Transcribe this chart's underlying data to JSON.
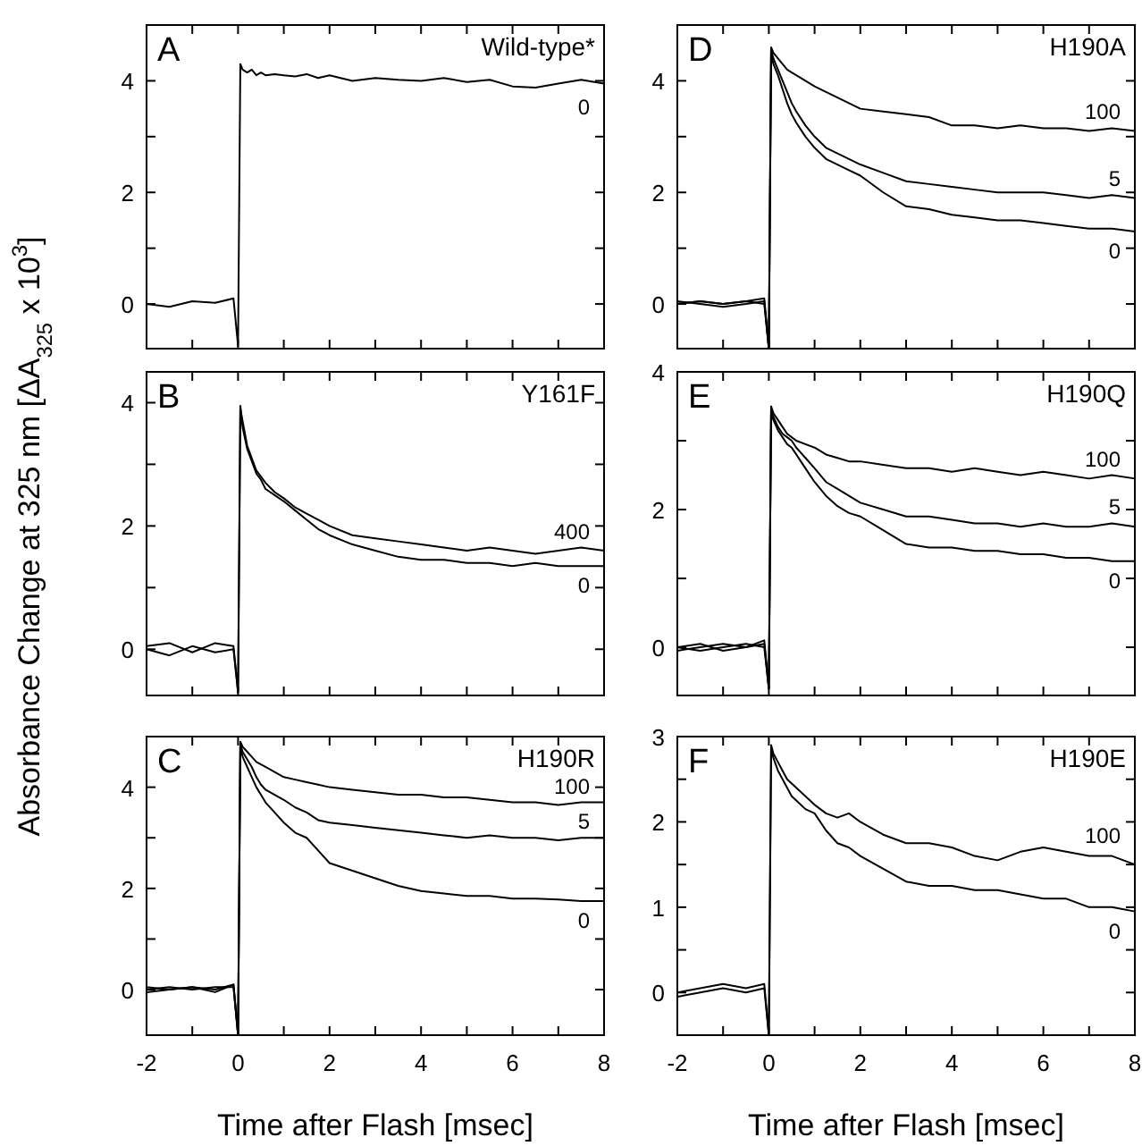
{
  "chart_data": [
    {
      "type": "line",
      "title": "A",
      "subtitle": "Wild-type*",
      "legend": "right",
      "xlim": [
        -2,
        8
      ],
      "xticks": [
        -2,
        {
          "value": -1,
          "label": null
        },
        0,
        {
          "value": 1,
          "label": null
        },
        2,
        {
          "value": 3,
          "label": null
        },
        4,
        {
          "value": 5,
          "label": null
        },
        6,
        {
          "value": 7,
          "label": null
        },
        8
      ],
      "ylim": [
        -0.8,
        5
      ],
      "yticks": [
        0,
        {
          "value": 1,
          "label": null
        },
        2,
        {
          "value": 3,
          "label": null
        },
        4
      ],
      "tick_labels": "y",
      "marker": "none",
      "line_style": "solid",
      "grid": false,
      "x": [
        -2,
        -1.5,
        -1,
        -0.5,
        -0.1,
        0,
        0.05,
        0.1,
        0.2,
        0.3,
        0.4,
        0.5,
        0.6,
        0.8,
        1,
        1.25,
        1.5,
        1.75,
        2,
        2.5,
        3,
        3.5,
        4,
        4.5,
        5,
        5.5,
        6,
        6.5,
        7,
        7.5,
        8
      ],
      "series": [
        {
          "name": "0",
          "color": "#000000",
          "values": [
            0,
            -0.05,
            0.05,
            0.02,
            0.1,
            -0.75,
            4.3,
            4.2,
            4.15,
            4.2,
            4.1,
            4.15,
            4.1,
            4.12,
            4.1,
            4.08,
            4.12,
            4.05,
            4.1,
            4.0,
            4.05,
            4.02,
            4.0,
            4.05,
            3.98,
            4.02,
            3.9,
            3.88,
            3.95,
            4.02,
            3.95
          ]
        }
      ]
    },
    {
      "type": "line",
      "title": "B",
      "subtitle": "Y161F",
      "ylabel": "Absorbance Change at 325 nm [ΔA$_{325}$ x 10$^{3}$]",
      "xlim": [
        -2,
        8
      ],
      "xticks": [
        -2,
        {
          "value": -1,
          "label": null
        },
        0,
        {
          "value": 1,
          "label": null
        },
        2,
        {
          "value": 3,
          "label": null
        },
        4,
        {
          "value": 5,
          "label": null
        },
        6,
        {
          "value": 7,
          "label": null
        },
        8
      ],
      "ylim": [
        -0.75,
        4.5
      ],
      "yticks": [
        0,
        {
          "value": 1,
          "label": null
        },
        2,
        {
          "value": 3,
          "label": null
        },
        4
      ],
      "tick_labels": "y",
      "legend": "right",
      "marker": "none",
      "line_style": "solid",
      "grid": false,
      "x": [
        -2,
        -1.5,
        -1,
        -0.5,
        -0.1,
        0,
        0.05,
        0.1,
        0.2,
        0.3,
        0.4,
        0.5,
        0.6,
        0.8,
        1,
        1.25,
        1.5,
        1.75,
        2,
        2.5,
        3,
        3.5,
        4,
        4.5,
        5,
        5.5,
        6,
        6.5,
        7,
        7.5,
        8
      ],
      "series": [
        {
          "name": "400",
          "color": "#000000",
          "values": [
            0.05,
            0.1,
            -0.05,
            0.1,
            0.05,
            -0.7,
            3.9,
            3.7,
            3.3,
            3.1,
            2.9,
            2.8,
            2.7,
            2.55,
            2.45,
            2.3,
            2.2,
            2.1,
            2.0,
            1.85,
            1.8,
            1.75,
            1.7,
            1.65,
            1.6,
            1.65,
            1.6,
            1.55,
            1.6,
            1.65,
            1.6
          ]
        },
        {
          "name": "0",
          "color": "#000000",
          "values": [
            0,
            -0.1,
            0.05,
            -0.05,
            0.0,
            -0.7,
            3.95,
            3.6,
            3.25,
            3.05,
            2.85,
            2.75,
            2.6,
            2.5,
            2.4,
            2.25,
            2.1,
            1.95,
            1.85,
            1.7,
            1.6,
            1.5,
            1.45,
            1.45,
            1.4,
            1.4,
            1.35,
            1.4,
            1.35,
            1.35,
            1.35
          ]
        }
      ]
    },
    {
      "type": "line",
      "title": "C",
      "subtitle": "H190R",
      "xlabel": "Time after Flash [msec]",
      "xlim": [
        -2,
        8
      ],
      "xticks": [
        -2,
        {
          "value": -1,
          "label": null
        },
        0,
        {
          "value": 1,
          "label": null
        },
        2,
        {
          "value": 3,
          "label": null
        },
        4,
        {
          "value": 5,
          "label": null
        },
        6,
        {
          "value": 7,
          "label": null
        },
        8
      ],
      "ylim": [
        -0.9,
        5
      ],
      "yticks": [
        0,
        {
          "value": 1,
          "label": null
        },
        2,
        {
          "value": 3,
          "label": null
        },
        4
      ],
      "legend": "right",
      "marker": "none",
      "line_style": "solid",
      "grid": false,
      "x": [
        -2,
        -1.5,
        -1,
        -0.5,
        -0.1,
        0,
        0.05,
        0.1,
        0.2,
        0.3,
        0.4,
        0.5,
        0.6,
        0.8,
        1,
        1.25,
        1.5,
        1.75,
        2,
        2.5,
        3,
        3.5,
        4,
        4.5,
        5,
        5.5,
        6,
        6.5,
        7,
        7.5,
        8
      ],
      "series": [
        {
          "name": "100",
          "color": "#000000",
          "values": [
            0.05,
            0,
            0.05,
            -0.05,
            0.1,
            -0.9,
            4.9,
            4.8,
            4.7,
            4.6,
            4.5,
            4.45,
            4.4,
            4.3,
            4.2,
            4.15,
            4.1,
            4.05,
            4.0,
            3.95,
            3.9,
            3.85,
            3.85,
            3.8,
            3.8,
            3.75,
            3.7,
            3.7,
            3.65,
            3.7,
            3.7
          ]
        },
        {
          "name": "5",
          "color": "#000000",
          "values": [
            0,
            0.05,
            0,
            0.05,
            0.05,
            -0.9,
            4.85,
            4.7,
            4.55,
            4.4,
            4.2,
            4.05,
            3.95,
            3.85,
            3.75,
            3.6,
            3.5,
            3.35,
            3.3,
            3.25,
            3.2,
            3.15,
            3.1,
            3.05,
            3.0,
            3.05,
            3.0,
            3.0,
            2.95,
            3.0,
            3.0
          ]
        },
        {
          "name": "0",
          "color": "#000000",
          "values": [
            -0.05,
            0,
            0.05,
            0,
            0.1,
            -0.9,
            4.8,
            4.6,
            4.4,
            4.2,
            4.0,
            3.85,
            3.7,
            3.5,
            3.3,
            3.1,
            3.0,
            2.75,
            2.5,
            2.35,
            2.2,
            2.05,
            1.95,
            1.9,
            1.85,
            1.85,
            1.8,
            1.8,
            1.78,
            1.75,
            1.75
          ]
        }
      ]
    },
    {
      "type": "line",
      "title": "D",
      "subtitle": "H190A",
      "xlim": [
        -2,
        8
      ],
      "xticks": [
        -2,
        {
          "value": -1,
          "label": null
        },
        0,
        {
          "value": 1,
          "label": null
        },
        2,
        {
          "value": 3,
          "label": null
        },
        4,
        {
          "value": 5,
          "label": null
        },
        6,
        {
          "value": 7,
          "label": null
        },
        8
      ],
      "ylim": [
        -0.8,
        5
      ],
      "yticks": [
        0,
        {
          "value": 1,
          "label": null
        },
        2,
        {
          "value": 3,
          "label": null
        },
        4
      ],
      "tick_labels": "y",
      "legend": "right",
      "marker": "none",
      "line_style": "solid",
      "grid": false,
      "x": [
        -2,
        -1.5,
        -1,
        -0.5,
        -0.1,
        0,
        0.05,
        0.1,
        0.2,
        0.3,
        0.4,
        0.5,
        0.6,
        0.8,
        1,
        1.25,
        1.5,
        1.75,
        2,
        2.5,
        3,
        3.5,
        4,
        4.5,
        5,
        5.5,
        6,
        6.5,
        7,
        7.5,
        8
      ],
      "series": [
        {
          "name": "100",
          "color": "#000000",
          "values": [
            0,
            0.05,
            0,
            0.05,
            0.1,
            -0.8,
            4.6,
            4.5,
            4.4,
            4.3,
            4.2,
            4.15,
            4.1,
            4.0,
            3.9,
            3.8,
            3.7,
            3.6,
            3.5,
            3.45,
            3.4,
            3.35,
            3.2,
            3.2,
            3.15,
            3.2,
            3.15,
            3.15,
            3.1,
            3.15,
            3.1
          ]
        },
        {
          "name": "5",
          "color": "#000000",
          "values": [
            0.05,
            0,
            -0.05,
            0,
            0.05,
            -0.8,
            4.55,
            4.4,
            4.2,
            4.0,
            3.8,
            3.6,
            3.45,
            3.2,
            3.0,
            2.8,
            2.7,
            2.6,
            2.5,
            2.35,
            2.2,
            2.15,
            2.1,
            2.05,
            2.0,
            2.0,
            2.0,
            1.95,
            1.9,
            1.95,
            1.9
          ]
        },
        {
          "name": "0",
          "color": "#000000",
          "values": [
            0,
            0.05,
            0,
            0.05,
            0,
            -0.8,
            4.5,
            4.3,
            4.1,
            3.85,
            3.6,
            3.4,
            3.25,
            3.0,
            2.8,
            2.6,
            2.5,
            2.4,
            2.3,
            2.0,
            1.75,
            1.7,
            1.6,
            1.55,
            1.5,
            1.5,
            1.45,
            1.4,
            1.35,
            1.35,
            1.3
          ]
        }
      ]
    },
    {
      "type": "line",
      "title": "E",
      "subtitle": "H190Q",
      "xlim": [
        -2,
        8
      ],
      "xticks": [
        -2,
        {
          "value": -1,
          "label": null
        },
        0,
        {
          "value": 1,
          "label": null
        },
        2,
        {
          "value": 3,
          "label": null
        },
        4,
        {
          "value": 5,
          "label": null
        },
        6,
        {
          "value": 7,
          "label": null
        },
        8
      ],
      "ylim": [
        -0.7,
        4
      ],
      "yticks": [
        0,
        {
          "value": 1,
          "label": null
        },
        2,
        {
          "value": 3,
          "label": null
        },
        4
      ],
      "tick_labels": "y",
      "legend": "right",
      "marker": "none",
      "line_style": "solid",
      "grid": false,
      "x": [
        -2,
        -1.5,
        -1,
        -0.5,
        -0.1,
        0,
        0.05,
        0.1,
        0.2,
        0.3,
        0.4,
        0.5,
        0.6,
        0.8,
        1,
        1.25,
        1.5,
        1.75,
        2,
        2.5,
        3,
        3.5,
        4,
        4.5,
        5,
        5.5,
        6,
        6.5,
        7,
        7.5,
        8
      ],
      "series": [
        {
          "name": "100",
          "color": "#000000",
          "values": [
            0,
            0.05,
            -0.05,
            0,
            0.1,
            -0.6,
            3.5,
            3.4,
            3.3,
            3.2,
            3.1,
            3.05,
            3.0,
            2.95,
            2.9,
            2.8,
            2.75,
            2.7,
            2.7,
            2.65,
            2.6,
            2.6,
            2.55,
            2.6,
            2.55,
            2.5,
            2.55,
            2.5,
            2.45,
            2.5,
            2.45
          ]
        },
        {
          "name": "5",
          "color": "#000000",
          "values": [
            -0.05,
            0,
            0.05,
            0,
            0.05,
            -0.6,
            3.45,
            3.35,
            3.2,
            3.1,
            3.05,
            3.0,
            2.9,
            2.75,
            2.6,
            2.4,
            2.3,
            2.2,
            2.1,
            2.0,
            1.9,
            1.9,
            1.85,
            1.8,
            1.8,
            1.75,
            1.8,
            1.75,
            1.75,
            1.8,
            1.75
          ]
        },
        {
          "name": "0",
          "color": "#000000",
          "values": [
            0,
            -0.05,
            0,
            0.05,
            0,
            -0.6,
            3.4,
            3.3,
            3.15,
            3.05,
            2.95,
            2.9,
            2.8,
            2.6,
            2.4,
            2.2,
            2.05,
            1.95,
            1.9,
            1.7,
            1.5,
            1.45,
            1.45,
            1.4,
            1.4,
            1.35,
            1.35,
            1.3,
            1.3,
            1.25,
            1.25
          ]
        }
      ]
    },
    {
      "type": "line",
      "title": "F",
      "subtitle": "H190E",
      "xlabel": "Time after Flash [msec]",
      "xlim": [
        -2,
        8
      ],
      "xticks": [
        -2,
        {
          "value": -1,
          "label": null
        },
        0,
        {
          "value": 1,
          "label": null
        },
        2,
        {
          "value": 3,
          "label": null
        },
        4,
        {
          "value": 5,
          "label": null
        },
        6,
        {
          "value": 7,
          "label": null
        },
        8
      ],
      "ylim": [
        -0.5,
        3
      ],
      "yticks": [
        0,
        {
          "value": 0.5,
          "label": null
        },
        1,
        {
          "value": 1.5,
          "label": null
        },
        2,
        {
          "value": 2.5,
          "label": null
        },
        3
      ],
      "legend": "right",
      "marker": "none",
      "line_style": "solid",
      "grid": false,
      "x": [
        -2,
        -1.5,
        -1,
        -0.5,
        -0.1,
        0,
        0.05,
        0.1,
        0.2,
        0.3,
        0.4,
        0.5,
        0.6,
        0.8,
        1,
        1.25,
        1.5,
        1.75,
        2,
        2.5,
        3,
        3.5,
        4,
        4.5,
        5,
        5.5,
        6,
        6.5,
        7,
        7.5,
        8
      ],
      "series": [
        {
          "name": "100",
          "color": "#000000",
          "values": [
            0,
            0.05,
            0.1,
            0.05,
            0.1,
            -0.5,
            2.9,
            2.8,
            2.7,
            2.6,
            2.5,
            2.45,
            2.4,
            2.3,
            2.2,
            2.1,
            2.05,
            2.1,
            2.0,
            1.85,
            1.75,
            1.75,
            1.7,
            1.6,
            1.55,
            1.65,
            1.7,
            1.65,
            1.6,
            1.6,
            1.5
          ]
        },
        {
          "name": "0",
          "color": "#000000",
          "values": [
            -0.05,
            0,
            0.05,
            0.0,
            0.05,
            -0.5,
            2.85,
            2.75,
            2.6,
            2.5,
            2.4,
            2.3,
            2.25,
            2.15,
            2.1,
            1.9,
            1.75,
            1.7,
            1.6,
            1.45,
            1.3,
            1.25,
            1.25,
            1.2,
            1.2,
            1.15,
            1.1,
            1.1,
            1.0,
            1.0,
            0.95
          ]
        }
      ]
    }
  ]
}
